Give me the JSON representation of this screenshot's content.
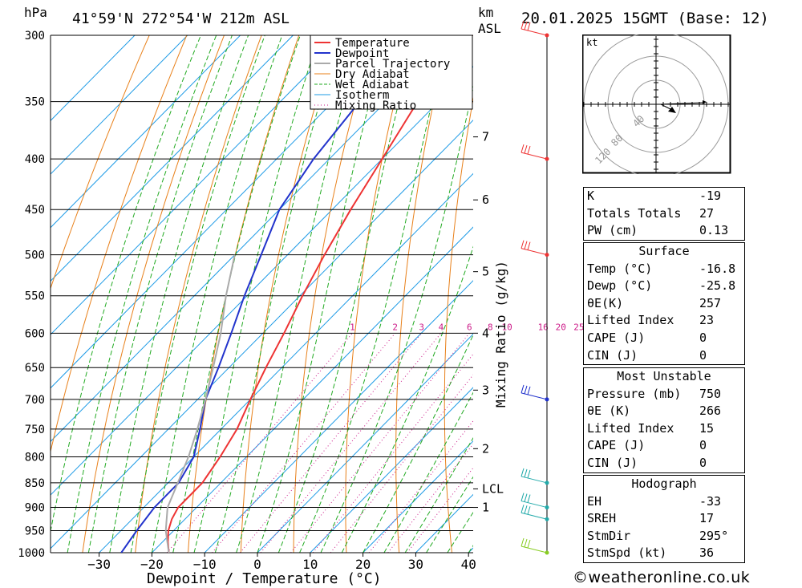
{
  "header": {
    "hpa_label": "hPa",
    "location": "41°59'N  272°54'W  212m  ASL",
    "km_label": "km",
    "asl_label": "ASL",
    "datetime": "20.01.2025  15GMT  (Base: 12)"
  },
  "chart_data": {
    "type": "line",
    "xlabel": "Dewpoint / Temperature (°C)",
    "ylabel": "hPa",
    "x_ticks": [
      -30,
      -20,
      -10,
      0,
      10,
      20,
      30,
      40
    ],
    "pressure_levels": [
      300,
      350,
      400,
      450,
      500,
      550,
      600,
      650,
      700,
      750,
      800,
      850,
      900,
      950,
      1000
    ],
    "km_ticks": [
      {
        "label": "7",
        "p": 380
      },
      {
        "label": "6",
        "p": 440
      },
      {
        "label": "5",
        "p": 520
      },
      {
        "label": "4",
        "p": 600
      },
      {
        "label": "3",
        "p": 685
      },
      {
        "label": "2",
        "p": 785
      },
      {
        "label": "LCL",
        "p": 862
      },
      {
        "label": "1",
        "p": 900
      }
    ],
    "mixing_ratio_label": "Mixing Ratio (g/kg)",
    "mixing_ratios": [
      "1",
      "2",
      "3",
      "4",
      "6",
      "8",
      "10",
      "16",
      "20",
      "25"
    ],
    "legend": [
      "Temperature",
      "Dewpoint",
      "Parcel Trajectory",
      "Dry Adiabat",
      "Wet Adiabat",
      "Isotherm",
      "Mixing Ratio"
    ],
    "colors": {
      "temperature": "#ee3333",
      "dewpoint": "#2233cc",
      "parcel": "#aaaaaa",
      "dry_adiabat": "#e8801a",
      "wet_adiabat": "#22aa22",
      "isotherm": "#1e9be6",
      "mixing_ratio": "#cc1a88"
    },
    "series": [
      {
        "name": "Temperature",
        "points": [
          [
            1000,
            -16.8
          ],
          [
            975,
            -19
          ],
          [
            950,
            -21
          ],
          [
            925,
            -22.5
          ],
          [
            900,
            -23.5
          ],
          [
            875,
            -23.5
          ],
          [
            850,
            -23.5
          ],
          [
            800,
            -25
          ],
          [
            750,
            -27
          ],
          [
            700,
            -30
          ],
          [
            650,
            -33
          ],
          [
            600,
            -36
          ],
          [
            550,
            -39.5
          ],
          [
            500,
            -43
          ],
          [
            450,
            -46.5
          ],
          [
            400,
            -50
          ],
          [
            350,
            -54
          ],
          [
            325,
            -55
          ],
          [
            300,
            -56
          ]
        ]
      },
      {
        "name": "Dewpoint",
        "points": [
          [
            1000,
            -25.8
          ],
          [
            950,
            -27
          ],
          [
            900,
            -28
          ],
          [
            850,
            -28
          ],
          [
            800,
            -30
          ],
          [
            750,
            -34
          ],
          [
            700,
            -38.5
          ],
          [
            650,
            -42
          ],
          [
            600,
            -46
          ],
          [
            550,
            -50.5
          ],
          [
            500,
            -55
          ],
          [
            450,
            -60
          ],
          [
            400,
            -63
          ],
          [
            350,
            -65
          ],
          [
            300,
            -67
          ]
        ]
      },
      {
        "name": "Parcel Trajectory",
        "points": [
          [
            1000,
            -16.8
          ],
          [
            950,
            -21.5
          ],
          [
            900,
            -25.5
          ],
          [
            862,
            -27.5
          ],
          [
            800,
            -31
          ],
          [
            750,
            -34.5
          ],
          [
            700,
            -38.5
          ],
          [
            650,
            -43
          ],
          [
            600,
            -48
          ],
          [
            550,
            -54
          ],
          [
            500,
            -60
          ]
        ]
      }
    ],
    "wind_barbs": [
      {
        "p": 300,
        "color": "#ee3333"
      },
      {
        "p": 400,
        "color": "#ee3333"
      },
      {
        "p": 500,
        "color": "#ee3333"
      },
      {
        "p": 700,
        "color": "#2233cc"
      },
      {
        "p": 850,
        "color": "#22aaaa"
      },
      {
        "p": 900,
        "color": "#22aaaa"
      },
      {
        "p": 925,
        "color": "#22aaaa"
      },
      {
        "p": 1000,
        "color": "#88cc22"
      }
    ]
  },
  "hodograph": {
    "unit_label": "kt",
    "ring_labels": [
      "40",
      "80",
      "120"
    ]
  },
  "indices": [
    {
      "label": "K",
      "value": "-19"
    },
    {
      "label": "Totals Totals",
      "value": "27"
    },
    {
      "label": "PW (cm)",
      "value": "0.13"
    }
  ],
  "surface": {
    "title": "Surface",
    "rows": [
      {
        "label": "Temp (°C)",
        "value": "-16.8"
      },
      {
        "label": "Dewp (°C)",
        "value": "-25.8"
      },
      {
        "label": "θE(K)",
        "value": "257"
      },
      {
        "label": "Lifted Index",
        "value": "23"
      },
      {
        "label": "CAPE (J)",
        "value": "0"
      },
      {
        "label": "CIN (J)",
        "value": "0"
      }
    ]
  },
  "most_unstable": {
    "title": "Most Unstable",
    "rows": [
      {
        "label": "Pressure (mb)",
        "value": "750"
      },
      {
        "label": "θE (K)",
        "value": "266"
      },
      {
        "label": "Lifted Index",
        "value": "15"
      },
      {
        "label": "CAPE (J)",
        "value": "0"
      },
      {
        "label": "CIN (J)",
        "value": "0"
      }
    ]
  },
  "hodograph_box": {
    "title": "Hodograph",
    "rows": [
      {
        "label": "EH",
        "value": "-33"
      },
      {
        "label": "SREH",
        "value": "17"
      },
      {
        "label": "StmDir",
        "value": "295°"
      },
      {
        "label": "StmSpd (kt)",
        "value": "36"
      }
    ]
  },
  "footer": "©weatheronline.co.uk"
}
